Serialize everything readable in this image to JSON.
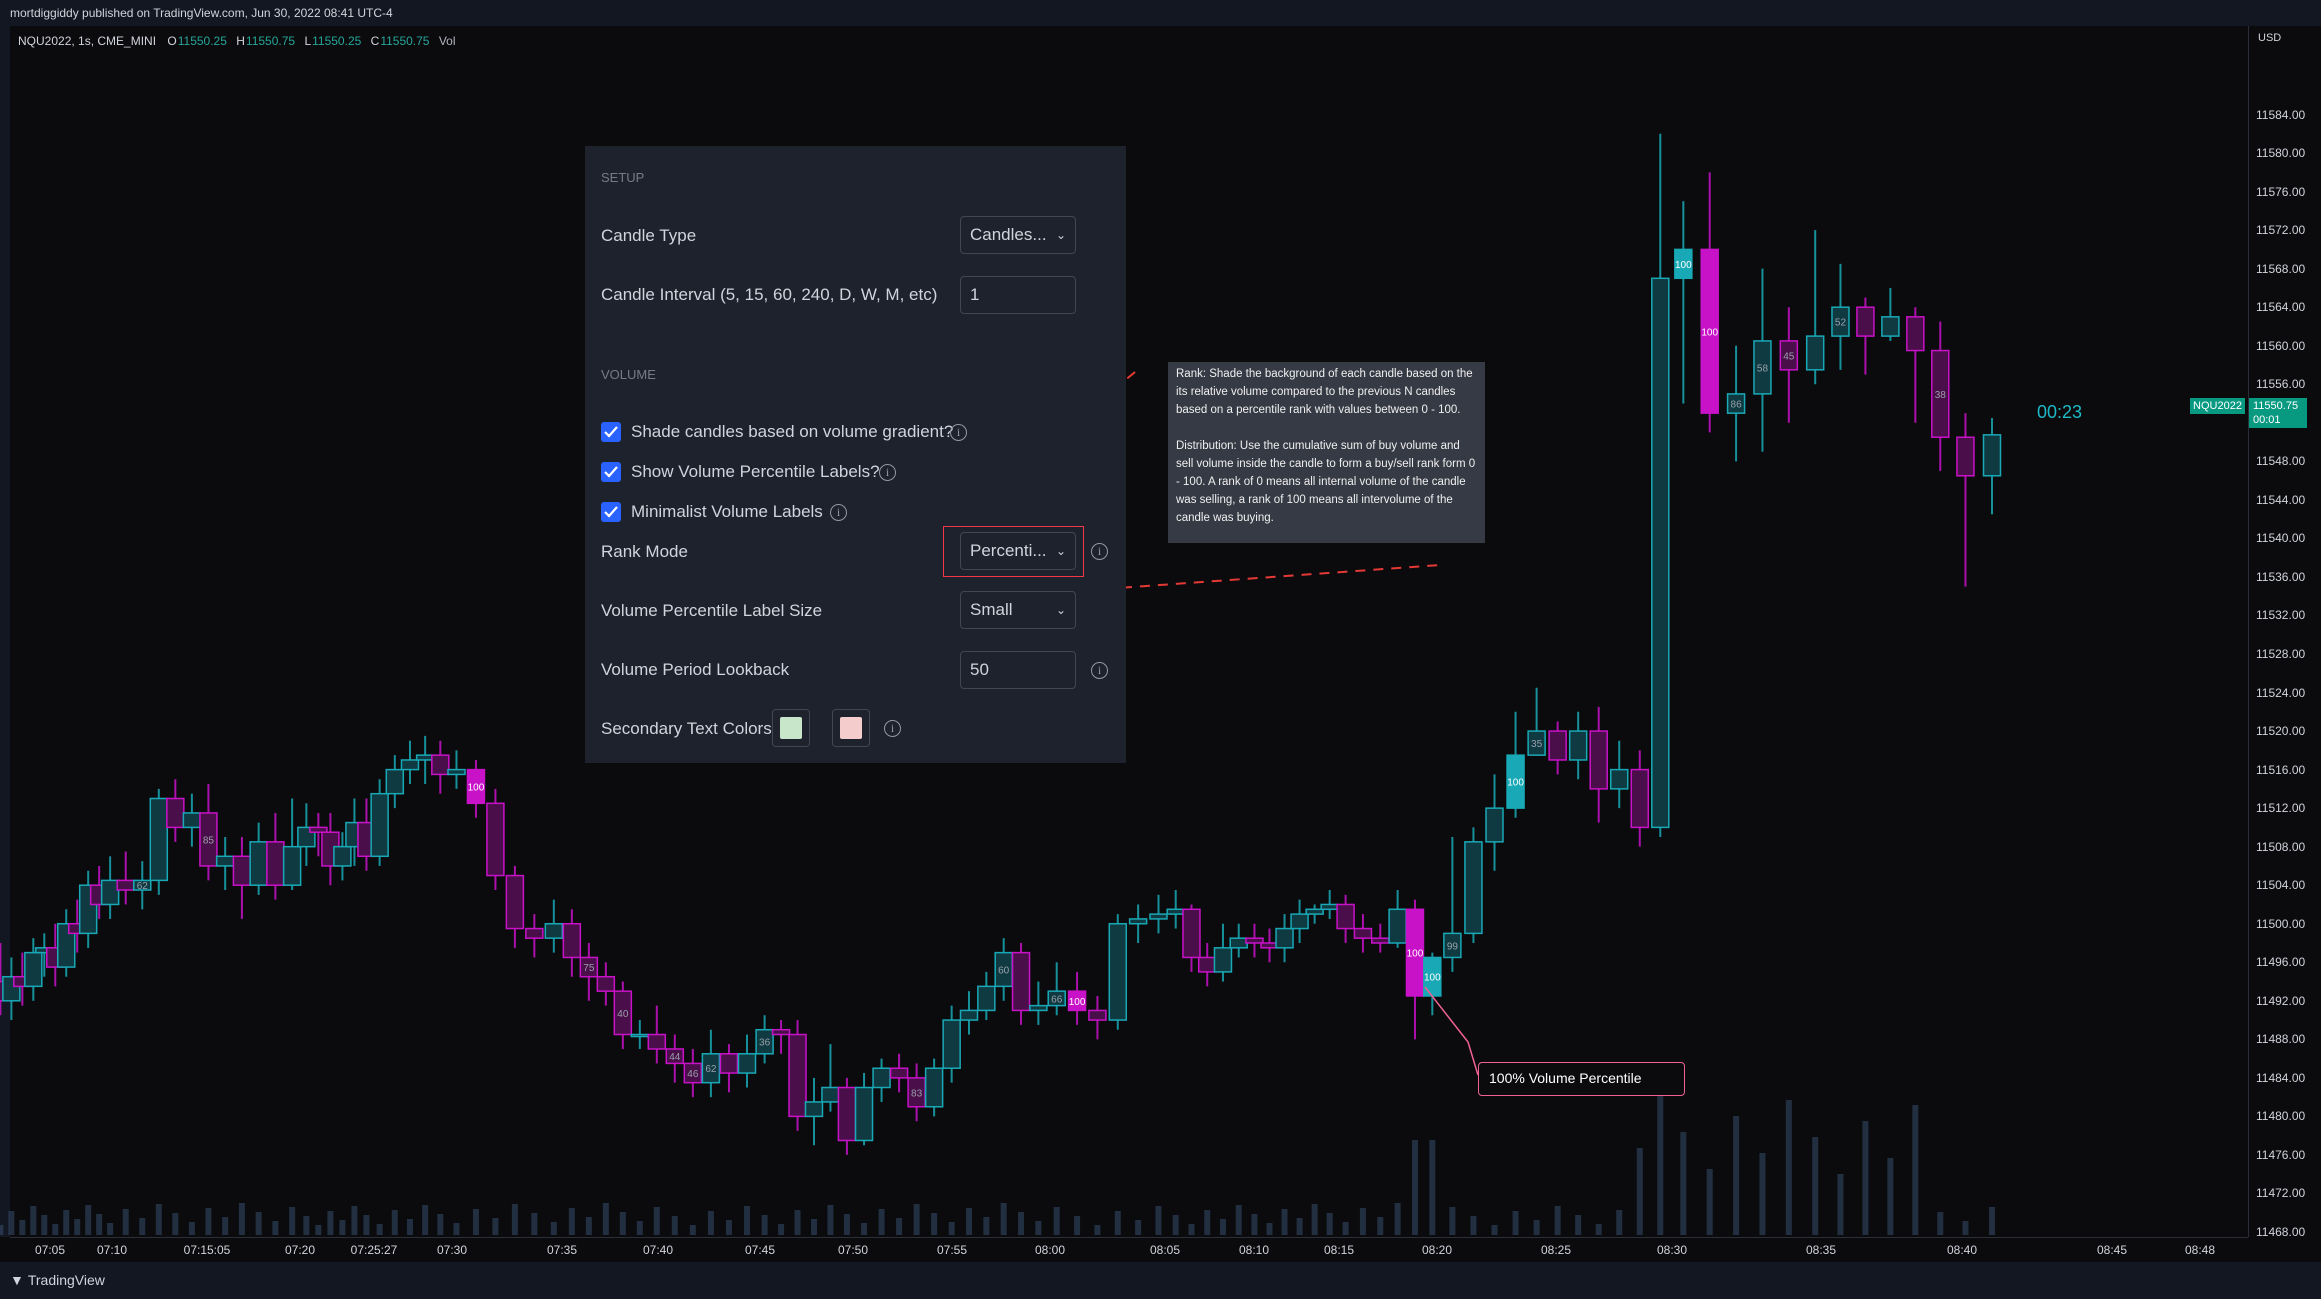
{
  "header": {
    "published_line": "mortdiggiddy published on TradingView.com, Jun 30, 2022 08:41 UTC-4"
  },
  "legend": {
    "symbol": "NQU2022, 1s, CME_MINI",
    "open_label": "O",
    "open": "11550.25",
    "high_label": "H",
    "high": "11550.75",
    "low_label": "L",
    "low": "11550.25",
    "close_label": "C",
    "close": "11550.75",
    "volume_label": "Vol"
  },
  "price_axis": {
    "currency": "USD",
    "ticks": [
      "11584.00",
      "11580.00",
      "11576.00",
      "11572.00",
      "11568.00",
      "11564.00",
      "11560.00",
      "11556.00",
      "11552.00",
      "11548.00",
      "11544.00",
      "11540.00",
      "11536.00",
      "11532.00",
      "11528.00",
      "11524.00",
      "11520.00",
      "11516.00",
      "11512.00",
      "11508.00",
      "11504.00",
      "11500.00",
      "11496.00",
      "11492.00",
      "11488.00",
      "11484.00",
      "11480.00",
      "11476.00",
      "11472.00",
      "11468.00"
    ]
  },
  "time_axis": {
    "ticks": [
      "07:05",
      "07:10",
      "07:15:05",
      "07:20",
      "07:25:27",
      "07:30",
      "07:35",
      "07:40",
      "07:45",
      "07:50",
      "07:55",
      "08:00",
      "08:05",
      "08:10",
      "08:15",
      "08:20",
      "08:25",
      "08:30",
      "08:35",
      "08:40",
      "08:45",
      "08:48"
    ]
  },
  "last_price": {
    "symbol_tag": "NQU2022",
    "price": "11550.75",
    "timer": "00:01",
    "countdown": "00:23"
  },
  "settings": {
    "setup_heading": "SETUP",
    "candle_type_label": "Candle Type",
    "candle_type_value": "Candles...",
    "interval_label": "Candle Interval (5, 15, 60, 240, D, W, M, etc)",
    "interval_value": "1",
    "volume_heading": "VOLUME",
    "shade_label": "Shade candles based on volume gradient?",
    "show_labels_label": "Show Volume Percentile Labels?",
    "minimalist_label": "Minimalist Volume Labels",
    "rank_mode_label": "Rank Mode",
    "rank_mode_value": "Percenti...",
    "label_size_label": "Volume Percentile Label Size",
    "label_size_value": "Small",
    "lookback_label": "Volume Period Lookback",
    "lookback_value": "50",
    "secondary_colors_label": "Secondary Text Colors",
    "swatch_colors": [
      "#c8e6c9",
      "#f4cccc"
    ]
  },
  "tooltip": {
    "rank_text": "Rank: Shade the background of each candle based on the its relative volume compared to the previous N candles based on a percentile rank with values between 0 - 100.",
    "distribution_text": "Distribution: Use the cumulative sum of buy volume and sell volume inside the candle to form a buy/sell rank form 0 - 100. A rank of 0 means all internal volume of the candle was selling, a rank of 100 means all intervolume of the candle was buying."
  },
  "callout": {
    "text": "100% Volume Percentile"
  },
  "footer": {
    "brand": "TradingView",
    "logo": "tradingview-logo"
  },
  "colors": {
    "up": "#19a9b6",
    "down": "#c812c8",
    "accent": "#2962ff",
    "highlight": "#f23645",
    "callout_border": "#f06292",
    "countdown": "#1fb8c6",
    "price_tag": "#089981"
  },
  "chart_data": {
    "type": "candlestick",
    "symbol": "NQU2022",
    "interval": "1s",
    "ylim": [
      11468,
      11588
    ],
    "percentile_labels": [
      {
        "time": "07:12",
        "label": "62",
        "dir": "up"
      },
      {
        "time": "07:15",
        "label": "85",
        "dir": "down"
      },
      {
        "time": "07:31",
        "label": "100",
        "dir": "down"
      },
      {
        "time": "07:36",
        "label": "75",
        "dir": "down"
      },
      {
        "time": "07:38",
        "label": "40",
        "dir": "down"
      },
      {
        "time": "07:41",
        "label": "44",
        "dir": "down"
      },
      {
        "time": "07:42",
        "label": "46",
        "dir": "up"
      },
      {
        "time": "07:43",
        "label": "62",
        "dir": "up"
      },
      {
        "time": "07:45",
        "label": "36",
        "dir": "down"
      },
      {
        "time": "07:53",
        "label": "83",
        "dir": "up"
      },
      {
        "time": "07:58",
        "label": "60",
        "dir": "up"
      },
      {
        "time": "08:00",
        "label": "66",
        "dir": "up"
      },
      {
        "time": "08:01",
        "label": "100",
        "dir": "down"
      },
      {
        "time": "08:19",
        "label": "100",
        "dir": "down"
      },
      {
        "time": "08:20",
        "label": "100",
        "dir": "up"
      },
      {
        "time": "08:21",
        "label": "99",
        "dir": "up"
      },
      {
        "time": "08:23",
        "label": "100",
        "dir": "up"
      },
      {
        "time": "08:24",
        "label": "35",
        "dir": "up"
      },
      {
        "time": "08:30",
        "label": "100",
        "dir": "up"
      },
      {
        "time": "08:31",
        "label": "100",
        "dir": "up"
      },
      {
        "time": "08:32",
        "label": "86",
        "dir": "down"
      },
      {
        "time": "08:33",
        "label": "58",
        "dir": "up"
      },
      {
        "time": "08:34",
        "label": "45",
        "dir": "up"
      },
      {
        "time": "08:36",
        "label": "52",
        "dir": "up"
      },
      {
        "time": "08:39",
        "label": "38",
        "dir": "down"
      }
    ],
    "candles": [
      [
        11494.0,
        11492.0,
        11498.0,
        11490.5
      ],
      [
        11492.0,
        11494.5,
        11496.5,
        11490.0
      ],
      [
        11494.5,
        11493.5,
        11497.0,
        11491.5
      ],
      [
        11493.5,
        11497.0,
        11498.5,
        11492.0
      ],
      [
        11497.0,
        11497.5,
        11499.0,
        11494.5
      ],
      [
        11497.5,
        11495.5,
        11500.0,
        11493.5
      ],
      [
        11495.5,
        11500.0,
        11501.5,
        11494.5
      ],
      [
        11500.0,
        11499.0,
        11502.5,
        11497.0
      ],
      [
        11499.0,
        11504.0,
        11505.5,
        11497.5
      ],
      [
        11504.0,
        11502.0,
        11506.0,
        11500.5
      ],
      [
        11502.0,
        11504.5,
        11507.0,
        11500.5
      ],
      [
        11504.5,
        11503.5,
        11507.5,
        11502.0
      ],
      [
        11503.5,
        11504.5,
        11506.5,
        11501.5
      ],
      [
        11504.5,
        11513.0,
        11514.0,
        11503.0
      ],
      [
        11513.0,
        11510.0,
        11515.0,
        11508.5
      ],
      [
        11510.0,
        11511.5,
        11513.5,
        11508.0
      ],
      [
        11511.5,
        11506.0,
        11514.5,
        11504.5
      ],
      [
        11506.0,
        11507.0,
        11509.0,
        11503.5
      ],
      [
        11507.0,
        11504.0,
        11509.0,
        11500.5
      ],
      [
        11504.0,
        11508.5,
        11510.5,
        11503.0
      ],
      [
        11508.5,
        11504.0,
        11511.5,
        11502.5
      ],
      [
        11504.0,
        11508.0,
        11513.0,
        11503.5
      ],
      [
        11508.0,
        11510.0,
        11512.5,
        11506.0
      ],
      [
        11510.0,
        11509.5,
        11511.5,
        11507.0
      ],
      [
        11509.5,
        11506.0,
        11511.5,
        11504.0
      ],
      [
        11506.0,
        11508.0,
        11509.5,
        11504.5
      ],
      [
        11508.0,
        11510.5,
        11513.0,
        11506.0
      ],
      [
        11510.5,
        11507.0,
        11513.0,
        11505.5
      ],
      [
        11507.0,
        11513.5,
        11515.0,
        11506.0
      ],
      [
        11513.5,
        11516.0,
        11517.5,
        11512.0
      ],
      [
        11516.0,
        11517.0,
        11519.0,
        11514.5
      ],
      [
        11517.0,
        11517.5,
        11519.5,
        11514.5
      ],
      [
        11517.5,
        11515.5,
        11519.0,
        11513.5
      ],
      [
        11515.5,
        11516.0,
        11518.0,
        11514.0
      ],
      [
        11516.0,
        11512.5,
        11517.0,
        11511.0
      ],
      [
        11512.5,
        11505.0,
        11514.0,
        11503.5
      ],
      [
        11505.0,
        11499.5,
        11506.0,
        11497.5
      ],
      [
        11499.5,
        11498.5,
        11501.0,
        11496.5
      ],
      [
        11498.5,
        11500.0,
        11502.5,
        11497.0
      ],
      [
        11500.0,
        11496.5,
        11501.5,
        11494.5
      ],
      [
        11496.5,
        11494.5,
        11498.0,
        11492.0
      ],
      [
        11494.5,
        11493.0,
        11496.0,
        11491.5
      ],
      [
        11493.0,
        11488.5,
        11494.0,
        11487.0
      ],
      [
        11488.5,
        11488.5,
        11490.0,
        11487.0
      ],
      [
        11488.5,
        11487.0,
        11491.5,
        11485.5
      ],
      [
        11487.0,
        11485.5,
        11488.5,
        11483.5
      ],
      [
        11485.5,
        11483.5,
        11487.0,
        11482.0
      ],
      [
        11483.5,
        11486.5,
        11489.0,
        11482.0
      ],
      [
        11486.5,
        11484.5,
        11487.5,
        11482.5
      ],
      [
        11484.5,
        11486.5,
        11488.5,
        11483.0
      ],
      [
        11486.5,
        11489.0,
        11490.5,
        11485.5
      ],
      [
        11489.0,
        11488.5,
        11490.0,
        11486.5
      ],
      [
        11488.5,
        11480.0,
        11490.0,
        11478.5
      ],
      [
        11480.0,
        11481.5,
        11484.0,
        11477.0
      ],
      [
        11481.5,
        11483.0,
        11487.5,
        11480.5
      ],
      [
        11483.0,
        11477.5,
        11484.0,
        11476.0
      ],
      [
        11477.5,
        11483.0,
        11484.5,
        11477.0
      ],
      [
        11483.0,
        11485.0,
        11486.0,
        11481.5
      ],
      [
        11485.0,
        11484.0,
        11486.5,
        11482.5
      ],
      [
        11484.0,
        11481.0,
        11485.5,
        11479.5
      ],
      [
        11481.0,
        11485.0,
        11486.0,
        11480.0
      ],
      [
        11485.0,
        11490.0,
        11491.5,
        11483.5
      ],
      [
        11490.0,
        11491.0,
        11493.0,
        11488.5
      ],
      [
        11491.0,
        11493.5,
        11495.0,
        11490.0
      ],
      [
        11493.5,
        11497.0,
        11498.5,
        11492.0
      ],
      [
        11497.0,
        11491.0,
        11498.0,
        11489.5
      ],
      [
        11491.0,
        11491.5,
        11494.0,
        11489.5
      ],
      [
        11491.5,
        11493.0,
        11496.0,
        11490.5
      ],
      [
        11493.0,
        11491.0,
        11495.0,
        11489.5
      ],
      [
        11491.0,
        11490.0,
        11492.5,
        11488.0
      ],
      [
        11490.0,
        11500.0,
        11501.0,
        11489.0
      ],
      [
        11500.0,
        11500.5,
        11502.0,
        11498.0
      ],
      [
        11500.5,
        11501.0,
        11503.0,
        11499.0
      ],
      [
        11501.0,
        11501.5,
        11503.5,
        11499.5
      ],
      [
        11501.5,
        11496.5,
        11502.0,
        11495.0
      ],
      [
        11496.5,
        11495.0,
        11498.0,
        11493.5
      ],
      [
        11495.0,
        11497.5,
        11500.0,
        11494.0
      ],
      [
        11497.5,
        11498.5,
        11500.0,
        11496.5
      ],
      [
        11498.5,
        11498.0,
        11500.0,
        11496.5
      ],
      [
        11498.0,
        11497.5,
        11499.5,
        11496.0
      ],
      [
        11497.5,
        11499.5,
        11501.0,
        11496.0
      ],
      [
        11499.5,
        11501.0,
        11502.5,
        11498.0
      ],
      [
        11501.0,
        11501.5,
        11502.0,
        11500.0
      ],
      [
        11501.5,
        11502.0,
        11503.5,
        11500.5
      ],
      [
        11502.0,
        11499.5,
        11503.0,
        11498.0
      ],
      [
        11499.5,
        11498.5,
        11501.0,
        11497.0
      ],
      [
        11498.5,
        11498.0,
        11500.0,
        11497.0
      ],
      [
        11498.0,
        11501.5,
        11503.5,
        11497.5
      ],
      [
        11501.5,
        11492.5,
        11502.5,
        11488.0
      ],
      [
        11492.5,
        11496.5,
        11497.0,
        11490.5
      ],
      [
        11496.5,
        11499.0,
        11509.0,
        11495.0
      ],
      [
        11499.0,
        11508.5,
        11510.0,
        11498.0
      ],
      [
        11508.5,
        11512.0,
        11515.5,
        11505.5
      ],
      [
        11512.0,
        11517.5,
        11522.0,
        11511.0
      ],
      [
        11517.5,
        11520.0,
        11524.5,
        11518.5
      ],
      [
        11520.0,
        11517.0,
        11521.0,
        11515.5
      ],
      [
        11517.0,
        11520.0,
        11522.0,
        11515.0
      ],
      [
        11520.0,
        11514.0,
        11522.5,
        11510.5
      ],
      [
        11514.0,
        11516.0,
        11519.0,
        11512.0
      ],
      [
        11516.0,
        11510.0,
        11518.0,
        11508.0
      ],
      [
        11510.0,
        11567.0,
        11582.0,
        11509.0
      ],
      [
        11567.0,
        11570.0,
        11575.0,
        11554.0
      ],
      [
        11570.0,
        11553.0,
        11578.0,
        11551.0
      ],
      [
        11553.0,
        11555.0,
        11560.0,
        11548.0
      ],
      [
        11555.0,
        11560.5,
        11568.0,
        11549.0
      ],
      [
        11560.5,
        11557.5,
        11564.0,
        11552.0
      ],
      [
        11557.5,
        11561.0,
        11572.0,
        11556.0
      ],
      [
        11561.0,
        11564.0,
        11568.5,
        11557.5
      ],
      [
        11564.0,
        11561.0,
        11565.0,
        11557.0
      ],
      [
        11561.0,
        11563.0,
        11566.0,
        11560.5
      ],
      [
        11563.0,
        11559.5,
        11564.0,
        11552.0
      ],
      [
        11559.5,
        11550.5,
        11562.5,
        11547.0
      ],
      [
        11550.5,
        11546.5,
        11553.0,
        11535.0
      ],
      [
        11546.5,
        11550.75,
        11552.5,
        11542.5
      ]
    ],
    "volume": "histogram at bottom of the pane; highest bars near 08:20 and 08:28–08:36"
  }
}
